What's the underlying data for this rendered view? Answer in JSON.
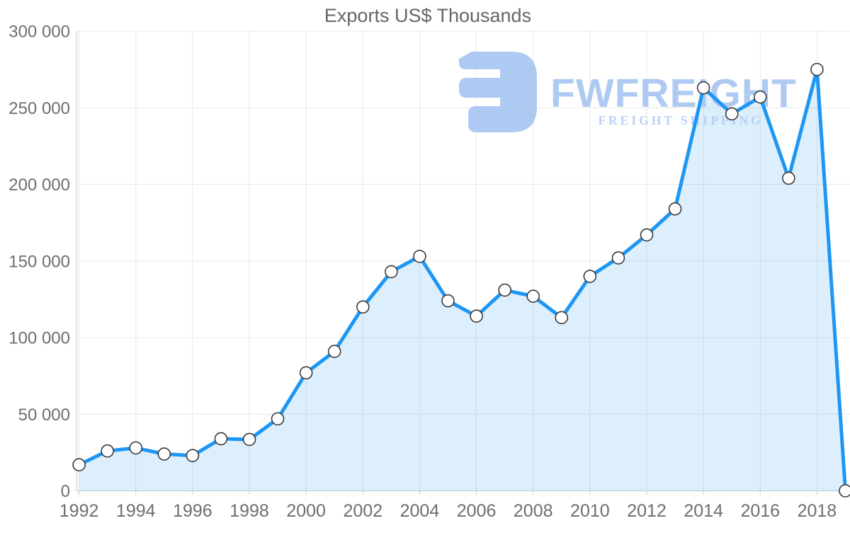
{
  "watermark": {
    "brand": "FWFREIGHT",
    "subtitle": "FREIGHT SHIPPING",
    "brand_color": "#A9C6F1",
    "subtitle_color": "#B3CEF5",
    "logo_color": "#A9C6F1"
  },
  "chart_data": {
    "type": "area",
    "title": "Exports US$ Thousands",
    "xlabel": "",
    "ylabel": "",
    "categories": [
      1992,
      1993,
      1994,
      1995,
      1996,
      1997,
      1998,
      1999,
      2000,
      2001,
      2002,
      2003,
      2004,
      2005,
      2006,
      2007,
      2008,
      2009,
      2010,
      2011,
      2012,
      2013,
      2014,
      2015,
      2016,
      2017,
      2018,
      2019
    ],
    "values": [
      17000,
      26000,
      28000,
      24000,
      23000,
      34000,
      33500,
      47000,
      77000,
      91000,
      120000,
      143000,
      153000,
      124000,
      114000,
      131000,
      127000,
      113000,
      140000,
      152000,
      167000,
      184000,
      263000,
      246000,
      257000,
      204000,
      275000,
      0
    ],
    "series_name": "Exports US$ Thousands",
    "ylim": [
      0,
      300000
    ],
    "ytick_step": 50000,
    "yticks": [
      {
        "value": 0,
        "label": "0"
      },
      {
        "value": 50000,
        "label": "50 000"
      },
      {
        "value": 100000,
        "label": "100 000"
      },
      {
        "value": 150000,
        "label": "150 000"
      },
      {
        "value": 200000,
        "label": "200 000"
      },
      {
        "value": 250000,
        "label": "250 000"
      },
      {
        "value": 300000,
        "label": "300 000"
      }
    ],
    "xticks": [
      {
        "value": 1992,
        "label": "1992"
      },
      {
        "value": 1994,
        "label": "1994"
      },
      {
        "value": 1996,
        "label": "1996"
      },
      {
        "value": 1998,
        "label": "1998"
      },
      {
        "value": 2000,
        "label": "2000"
      },
      {
        "value": 2002,
        "label": "2002"
      },
      {
        "value": 2004,
        "label": "2004"
      },
      {
        "value": 2006,
        "label": "2006"
      },
      {
        "value": 2008,
        "label": "2008"
      },
      {
        "value": 2010,
        "label": "2010"
      },
      {
        "value": 2012,
        "label": "2012"
      },
      {
        "value": 2014,
        "label": "2014"
      },
      {
        "value": 2016,
        "label": "2016"
      },
      {
        "value": 2018,
        "label": "2018"
      }
    ],
    "grid": true,
    "legend": false,
    "colors": {
      "line": "#1E96F3",
      "fill": "#1E96F3",
      "fill_opacity": 0.15,
      "marker_fill": "#FFFFFF",
      "marker_stroke": "#3A3A3A",
      "grid": "#E8E8E8",
      "axis": "#C9C9C9",
      "tick_label": "#6E6E6E",
      "title": "#666666"
    }
  }
}
